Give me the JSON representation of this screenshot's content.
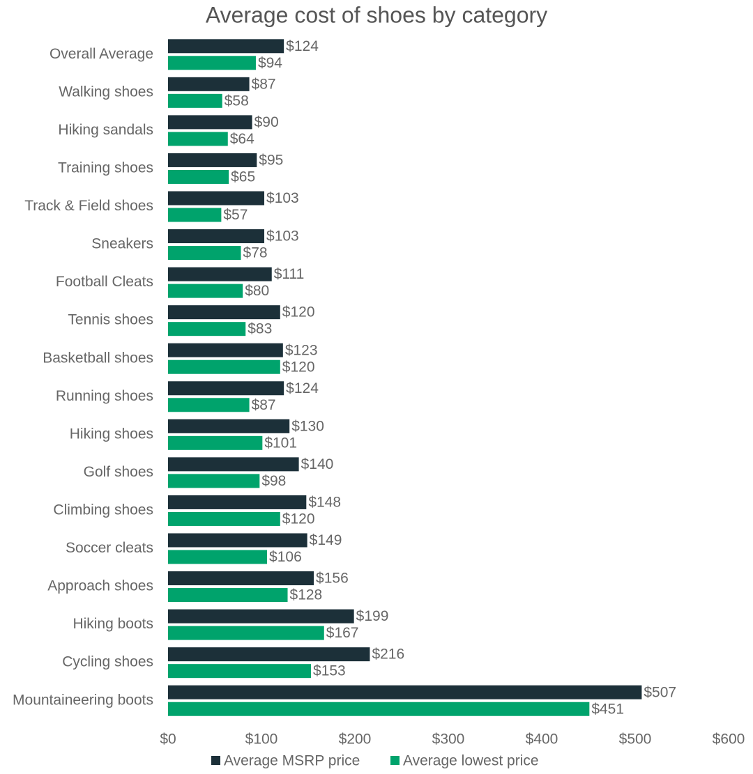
{
  "chart_data": {
    "type": "bar",
    "orientation": "horizontal",
    "title": "Average cost of shoes by category",
    "categories": [
      "Overall Average",
      "Walking shoes",
      "Hiking sandals",
      "Training shoes",
      "Track & Field shoes",
      "Sneakers",
      "Football Cleats",
      "Tennis shoes",
      "Basketball shoes",
      "Running shoes",
      "Hiking shoes",
      "Golf shoes",
      "Climbing shoes",
      "Soccer cleats",
      "Approach shoes",
      "Hiking boots",
      "Cycling shoes",
      "Mountaineering boots"
    ],
    "series": [
      {
        "name": "Average MSRP price",
        "color": "#1c3039",
        "values": [
          124,
          87,
          90,
          95,
          103,
          103,
          111,
          120,
          123,
          124,
          130,
          140,
          148,
          149,
          156,
          199,
          216,
          507
        ],
        "value_labels": [
          "$124",
          "$87",
          "$90",
          "$95",
          "$103",
          "$103",
          "$111",
          "$120",
          "$123",
          "$124",
          "$130",
          "$140",
          "$148",
          "$149",
          "$156",
          "$199",
          "$216",
          "$507"
        ]
      },
      {
        "name": "Average lowest price",
        "color": "#00a36c",
        "values": [
          94,
          58,
          64,
          65,
          57,
          78,
          80,
          83,
          120,
          87,
          101,
          98,
          120,
          106,
          128,
          167,
          153,
          451
        ],
        "value_labels": [
          "$94",
          "$58",
          "$64",
          "$65",
          "$57",
          "$78",
          "$80",
          "$83",
          "$120",
          "$87",
          "$101",
          "$98",
          "$120",
          "$106",
          "$128",
          "$167",
          "$153",
          "$451"
        ]
      }
    ],
    "xlim": [
      0,
      600
    ],
    "xticks": [
      {
        "value": 0,
        "label": "$0"
      },
      {
        "value": 100,
        "label": "$100"
      },
      {
        "value": 200,
        "label": "$200"
      },
      {
        "value": 300,
        "label": "$300"
      },
      {
        "value": 400,
        "label": "$400"
      },
      {
        "value": 500,
        "label": "$500"
      },
      {
        "value": 600,
        "label": "$600"
      }
    ],
    "grid": false,
    "legend": "bottom"
  }
}
